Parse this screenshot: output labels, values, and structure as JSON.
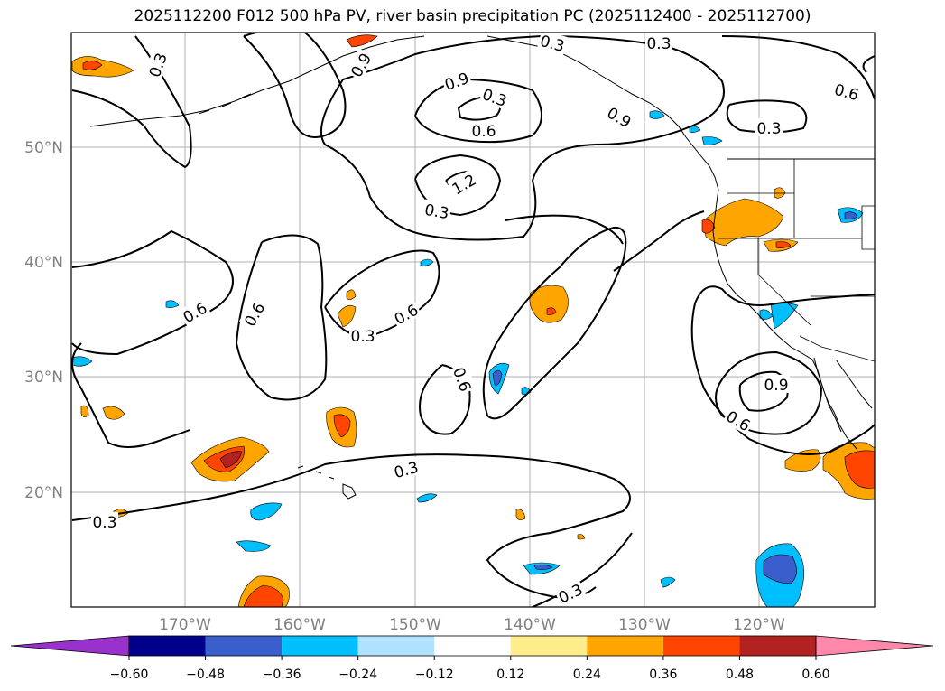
{
  "title": "2025112200 F012 500 hPa PV, river basin precipitation PC (2025112400 - 2025112700)",
  "map": {
    "lat_labels": [
      "50°N",
      "40°N",
      "30°N",
      "20°N"
    ],
    "lon_labels": [
      "170°W",
      "160°W",
      "150°W",
      "140°W",
      "130°W",
      "120°W"
    ],
    "axis_label_color": "#808080",
    "gridlines": true
  },
  "contours": {
    "color": "#000000",
    "labels": [
      "0.3",
      "0.3",
      "0.6",
      "0.6",
      "0.9",
      "0.3",
      "0.6",
      "0.9",
      "1.2",
      "0.3",
      "0.6",
      "0.6",
      "0.3",
      "0.3",
      "0.3",
      "0.9",
      "0.3",
      "0.6",
      "0.9",
      "0.6",
      "0.3",
      "0.3"
    ]
  },
  "colorbar": {
    "tick_labels": [
      "−0.60",
      "−0.48",
      "−0.36",
      "−0.24",
      "−0.12",
      "0.12",
      "0.24",
      "0.36",
      "0.48",
      "0.60"
    ],
    "colors": [
      "#9932cc",
      "#00008b",
      "#3a5fcd",
      "#00bfff",
      "#b0e2ff",
      "#ffffff",
      "#ffec8b",
      "#ffa500",
      "#ff4500",
      "#b22222",
      "#ff88aa"
    ],
    "extend": "both"
  }
}
